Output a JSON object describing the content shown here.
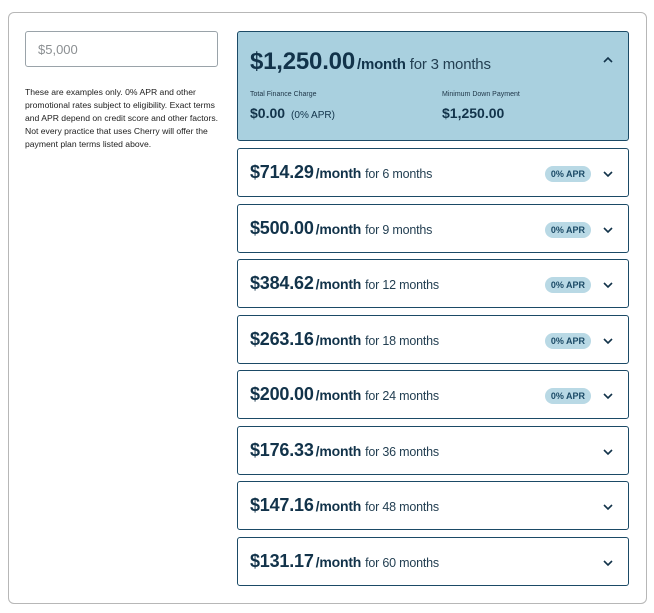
{
  "amount_input": {
    "placeholder": "$5,000",
    "value": ""
  },
  "disclaimer": "These are examples only. 0% APR and other promotional rates subject to eligibility. Exact terms and APR depend on credit score and other factors. Not every practice that uses Cherry will offer the payment plan terms listed above.",
  "expanded_plan": {
    "amount": "$1,250.00",
    "per_month": "/month",
    "term": "for 3 months",
    "finance_charge_label": "Total Finance Charge",
    "finance_charge_value": "$0.00",
    "finance_charge_apr": "(0% APR)",
    "down_payment_label": "Minimum Down Payment",
    "down_payment_value": "$1,250.00"
  },
  "plans": [
    {
      "amount": "$714.29",
      "per_month": "/month",
      "term": "for 6 months",
      "badge": "0% APR"
    },
    {
      "amount": "$500.00",
      "per_month": "/month",
      "term": "for 9 months",
      "badge": "0% APR"
    },
    {
      "amount": "$384.62",
      "per_month": "/month",
      "term": "for 12 months",
      "badge": "0% APR"
    },
    {
      "amount": "$263.16",
      "per_month": "/month",
      "term": "for 18 months",
      "badge": "0% APR"
    },
    {
      "amount": "$200.00",
      "per_month": "/month",
      "term": "for 24 months",
      "badge": "0% APR"
    },
    {
      "amount": "$176.33",
      "per_month": "/month",
      "term": "for 36 months",
      "badge": ""
    },
    {
      "amount": "$147.16",
      "per_month": "/month",
      "term": "for 48 months",
      "badge": ""
    },
    {
      "amount": "$131.17",
      "per_month": "/month",
      "term": "for 60 months",
      "badge": ""
    }
  ],
  "colors": {
    "accent": "#12334a",
    "expanded_bg": "#a9d0df",
    "badge_bg": "#b9d9e5",
    "border": "#1b4a66"
  },
  "icons": {
    "expanded": "chevron-up-icon",
    "collapsed": "chevron-down-icon"
  }
}
